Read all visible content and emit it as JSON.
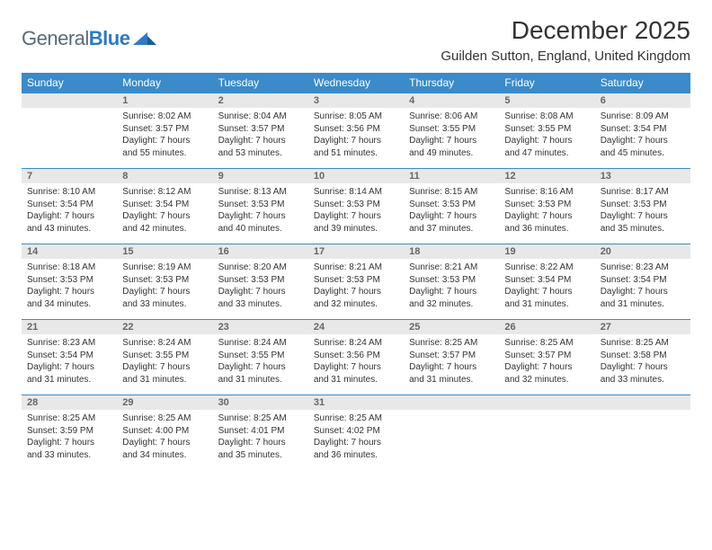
{
  "logo": {
    "text1": "General",
    "text2": "Blue"
  },
  "title": "December 2025",
  "location": "Guilden Sutton, England, United Kingdom",
  "colors": {
    "header_bg": "#3b8aca",
    "header_fg": "#ffffff",
    "daynum_bg": "#e8e8e8",
    "daynum_fg": "#666666",
    "rule": "#3b8aca",
    "logo_gray": "#5a6a78",
    "logo_blue": "#2f7abf"
  },
  "weekdays": [
    "Sunday",
    "Monday",
    "Tuesday",
    "Wednesday",
    "Thursday",
    "Friday",
    "Saturday"
  ],
  "weeks": [
    [
      null,
      {
        "n": "1",
        "sr": "Sunrise: 8:02 AM",
        "ss": "Sunset: 3:57 PM",
        "d1": "Daylight: 7 hours",
        "d2": "and 55 minutes."
      },
      {
        "n": "2",
        "sr": "Sunrise: 8:04 AM",
        "ss": "Sunset: 3:57 PM",
        "d1": "Daylight: 7 hours",
        "d2": "and 53 minutes."
      },
      {
        "n": "3",
        "sr": "Sunrise: 8:05 AM",
        "ss": "Sunset: 3:56 PM",
        "d1": "Daylight: 7 hours",
        "d2": "and 51 minutes."
      },
      {
        "n": "4",
        "sr": "Sunrise: 8:06 AM",
        "ss": "Sunset: 3:55 PM",
        "d1": "Daylight: 7 hours",
        "d2": "and 49 minutes."
      },
      {
        "n": "5",
        "sr": "Sunrise: 8:08 AM",
        "ss": "Sunset: 3:55 PM",
        "d1": "Daylight: 7 hours",
        "d2": "and 47 minutes."
      },
      {
        "n": "6",
        "sr": "Sunrise: 8:09 AM",
        "ss": "Sunset: 3:54 PM",
        "d1": "Daylight: 7 hours",
        "d2": "and 45 minutes."
      }
    ],
    [
      {
        "n": "7",
        "sr": "Sunrise: 8:10 AM",
        "ss": "Sunset: 3:54 PM",
        "d1": "Daylight: 7 hours",
        "d2": "and 43 minutes."
      },
      {
        "n": "8",
        "sr": "Sunrise: 8:12 AM",
        "ss": "Sunset: 3:54 PM",
        "d1": "Daylight: 7 hours",
        "d2": "and 42 minutes."
      },
      {
        "n": "9",
        "sr": "Sunrise: 8:13 AM",
        "ss": "Sunset: 3:53 PM",
        "d1": "Daylight: 7 hours",
        "d2": "and 40 minutes."
      },
      {
        "n": "10",
        "sr": "Sunrise: 8:14 AM",
        "ss": "Sunset: 3:53 PM",
        "d1": "Daylight: 7 hours",
        "d2": "and 39 minutes."
      },
      {
        "n": "11",
        "sr": "Sunrise: 8:15 AM",
        "ss": "Sunset: 3:53 PM",
        "d1": "Daylight: 7 hours",
        "d2": "and 37 minutes."
      },
      {
        "n": "12",
        "sr": "Sunrise: 8:16 AM",
        "ss": "Sunset: 3:53 PM",
        "d1": "Daylight: 7 hours",
        "d2": "and 36 minutes."
      },
      {
        "n": "13",
        "sr": "Sunrise: 8:17 AM",
        "ss": "Sunset: 3:53 PM",
        "d1": "Daylight: 7 hours",
        "d2": "and 35 minutes."
      }
    ],
    [
      {
        "n": "14",
        "sr": "Sunrise: 8:18 AM",
        "ss": "Sunset: 3:53 PM",
        "d1": "Daylight: 7 hours",
        "d2": "and 34 minutes."
      },
      {
        "n": "15",
        "sr": "Sunrise: 8:19 AM",
        "ss": "Sunset: 3:53 PM",
        "d1": "Daylight: 7 hours",
        "d2": "and 33 minutes."
      },
      {
        "n": "16",
        "sr": "Sunrise: 8:20 AM",
        "ss": "Sunset: 3:53 PM",
        "d1": "Daylight: 7 hours",
        "d2": "and 33 minutes."
      },
      {
        "n": "17",
        "sr": "Sunrise: 8:21 AM",
        "ss": "Sunset: 3:53 PM",
        "d1": "Daylight: 7 hours",
        "d2": "and 32 minutes."
      },
      {
        "n": "18",
        "sr": "Sunrise: 8:21 AM",
        "ss": "Sunset: 3:53 PM",
        "d1": "Daylight: 7 hours",
        "d2": "and 32 minutes."
      },
      {
        "n": "19",
        "sr": "Sunrise: 8:22 AM",
        "ss": "Sunset: 3:54 PM",
        "d1": "Daylight: 7 hours",
        "d2": "and 31 minutes."
      },
      {
        "n": "20",
        "sr": "Sunrise: 8:23 AM",
        "ss": "Sunset: 3:54 PM",
        "d1": "Daylight: 7 hours",
        "d2": "and 31 minutes."
      }
    ],
    [
      {
        "n": "21",
        "sr": "Sunrise: 8:23 AM",
        "ss": "Sunset: 3:54 PM",
        "d1": "Daylight: 7 hours",
        "d2": "and 31 minutes."
      },
      {
        "n": "22",
        "sr": "Sunrise: 8:24 AM",
        "ss": "Sunset: 3:55 PM",
        "d1": "Daylight: 7 hours",
        "d2": "and 31 minutes."
      },
      {
        "n": "23",
        "sr": "Sunrise: 8:24 AM",
        "ss": "Sunset: 3:55 PM",
        "d1": "Daylight: 7 hours",
        "d2": "and 31 minutes."
      },
      {
        "n": "24",
        "sr": "Sunrise: 8:24 AM",
        "ss": "Sunset: 3:56 PM",
        "d1": "Daylight: 7 hours",
        "d2": "and 31 minutes."
      },
      {
        "n": "25",
        "sr": "Sunrise: 8:25 AM",
        "ss": "Sunset: 3:57 PM",
        "d1": "Daylight: 7 hours",
        "d2": "and 31 minutes."
      },
      {
        "n": "26",
        "sr": "Sunrise: 8:25 AM",
        "ss": "Sunset: 3:57 PM",
        "d1": "Daylight: 7 hours",
        "d2": "and 32 minutes."
      },
      {
        "n": "27",
        "sr": "Sunrise: 8:25 AM",
        "ss": "Sunset: 3:58 PM",
        "d1": "Daylight: 7 hours",
        "d2": "and 33 minutes."
      }
    ],
    [
      {
        "n": "28",
        "sr": "Sunrise: 8:25 AM",
        "ss": "Sunset: 3:59 PM",
        "d1": "Daylight: 7 hours",
        "d2": "and 33 minutes."
      },
      {
        "n": "29",
        "sr": "Sunrise: 8:25 AM",
        "ss": "Sunset: 4:00 PM",
        "d1": "Daylight: 7 hours",
        "d2": "and 34 minutes."
      },
      {
        "n": "30",
        "sr": "Sunrise: 8:25 AM",
        "ss": "Sunset: 4:01 PM",
        "d1": "Daylight: 7 hours",
        "d2": "and 35 minutes."
      },
      {
        "n": "31",
        "sr": "Sunrise: 8:25 AM",
        "ss": "Sunset: 4:02 PM",
        "d1": "Daylight: 7 hours",
        "d2": "and 36 minutes."
      },
      null,
      null,
      null
    ]
  ]
}
